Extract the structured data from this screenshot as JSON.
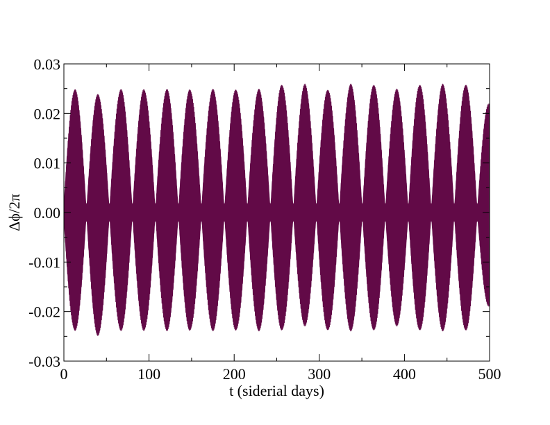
{
  "chart_data": {
    "type": "line",
    "title": "",
    "xlabel": "t (siderial days)",
    "ylabel": "Δϕ/2π",
    "xlim": [
      0,
      500
    ],
    "ylim": [
      -0.03,
      0.03
    ],
    "x_ticks": [
      0,
      100,
      200,
      300,
      400,
      500
    ],
    "x_tick_labels": [
      "0",
      "100",
      "200",
      "300",
      "400",
      "500"
    ],
    "y_ticks": [
      -0.03,
      -0.02,
      -0.01,
      0.0,
      0.01,
      0.02,
      0.03
    ],
    "y_tick_labels": [
      "-0.03",
      "-0.02",
      "-0.01",
      "0.00",
      "0.01",
      "0.02",
      "0.03"
    ],
    "grid": false,
    "legend": "none",
    "series": [
      {
        "color": "#620a47",
        "envelope_period_days": 27.1,
        "peaks": [
          {
            "t": 13,
            "max": 0.025,
            "min": -0.024
          },
          {
            "t": 40,
            "max": 0.024,
            "min": -0.025
          },
          {
            "t": 67,
            "max": 0.025,
            "min": -0.024
          },
          {
            "t": 94,
            "max": 0.025,
            "min": -0.024
          },
          {
            "t": 121,
            "max": 0.025,
            "min": -0.024
          },
          {
            "t": 148,
            "max": 0.025,
            "min": -0.024
          },
          {
            "t": 175,
            "max": 0.025,
            "min": -0.024
          },
          {
            "t": 202,
            "max": 0.025,
            "min": -0.024
          },
          {
            "t": 229,
            "max": 0.025,
            "min": -0.024
          },
          {
            "t": 256,
            "max": 0.026,
            "min": -0.024
          },
          {
            "t": 283,
            "max": 0.026,
            "min": -0.023
          },
          {
            "t": 310,
            "max": 0.025,
            "min": -0.024
          },
          {
            "t": 337,
            "max": 0.026,
            "min": -0.024
          },
          {
            "t": 364,
            "max": 0.026,
            "min": -0.024
          },
          {
            "t": 391,
            "max": 0.025,
            "min": -0.023
          },
          {
            "t": 418,
            "max": 0.026,
            "min": -0.024
          },
          {
            "t": 445,
            "max": 0.026,
            "min": -0.024
          },
          {
            "t": 472,
            "max": 0.026,
            "min": -0.024
          },
          {
            "t": 499,
            "max": 0.022,
            "min": -0.019
          }
        ]
      }
    ]
  }
}
